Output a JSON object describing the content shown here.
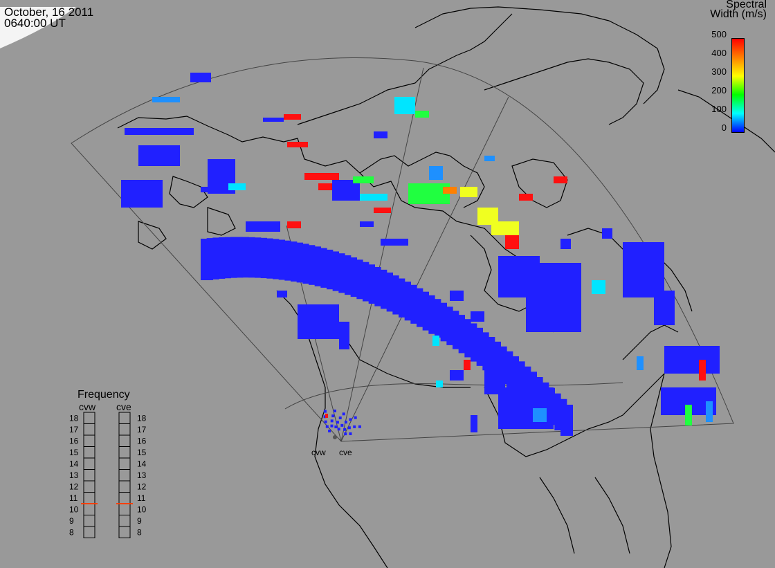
{
  "header": {
    "date": "October, 16 2011",
    "time": "0640:00 UT"
  },
  "colorbar": {
    "title_line1": "Spectral",
    "title_line2": "Width (m/s)",
    "ticks": [
      "500",
      "400",
      "300",
      "200",
      "100",
      "0"
    ],
    "colors": [
      "#ff0000",
      "#ff8000",
      "#ffff00",
      "#00ff00",
      "#00ffff",
      "#0000ff"
    ]
  },
  "radars": {
    "site_labels": [
      "cvw",
      "cve"
    ]
  },
  "frequency_panel": {
    "title": "Frequency",
    "columns": [
      {
        "name": "cvw",
        "marker_value": 10.5
      },
      {
        "name": "cve",
        "marker_value": 10.5
      }
    ],
    "scale": [
      "18",
      "17",
      "16",
      "15",
      "14",
      "13",
      "12",
      "11",
      "10",
      "9",
      "8"
    ],
    "marker_color": "#ff4000"
  }
}
